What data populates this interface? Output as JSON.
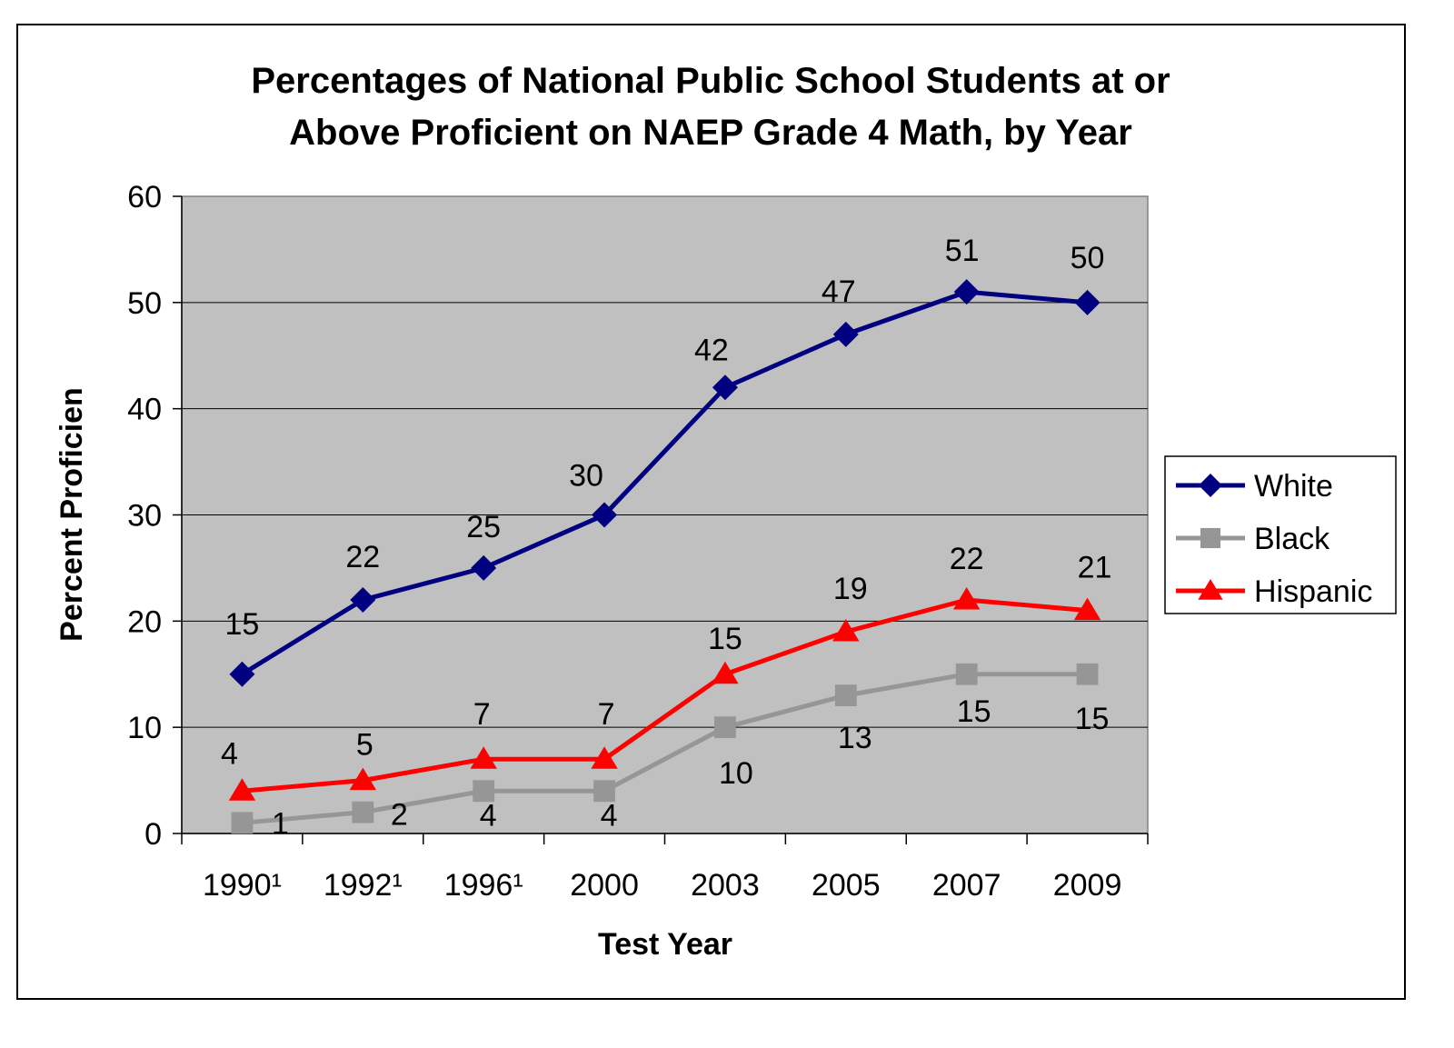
{
  "chart_data": {
    "type": "line",
    "title_lines": [
      "Percentages of National Public School Students at or",
      "Above Proficient on NAEP Grade 4 Math, by Year"
    ],
    "xlabel": "Test Year",
    "ylabel": "Percent Proficien",
    "categories": [
      "1990¹",
      "1992¹",
      "1996¹",
      "2000",
      "2003",
      "2005",
      "2007",
      "2009"
    ],
    "ylim": [
      0,
      60
    ],
    "yticks": [
      "0",
      "10",
      "20",
      "30",
      "40",
      "50",
      "60"
    ],
    "grid": true,
    "legend_position": "right",
    "plot_background": "#c0c0c0",
    "series": [
      {
        "name": "White",
        "color": "#000080",
        "marker": "diamond",
        "values": [
          15,
          22,
          25,
          30,
          42,
          47,
          51,
          50
        ],
        "labels": [
          "15",
          "22",
          "25",
          "30",
          "42",
          "47",
          "51",
          "50"
        ]
      },
      {
        "name": "Black",
        "color": "#969696",
        "marker": "square",
        "values": [
          1,
          2,
          4,
          4,
          10,
          13,
          15,
          15
        ],
        "labels": [
          "1",
          "2",
          "4",
          "4",
          "10",
          "13",
          "15",
          "15"
        ]
      },
      {
        "name": "Hispanic",
        "color": "#ff0000",
        "marker": "triangle",
        "values": [
          4,
          5,
          7,
          7,
          15,
          19,
          22,
          21
        ],
        "labels": [
          "4",
          "5",
          "7",
          "7",
          "15",
          "19",
          "22",
          "21"
        ]
      }
    ]
  }
}
